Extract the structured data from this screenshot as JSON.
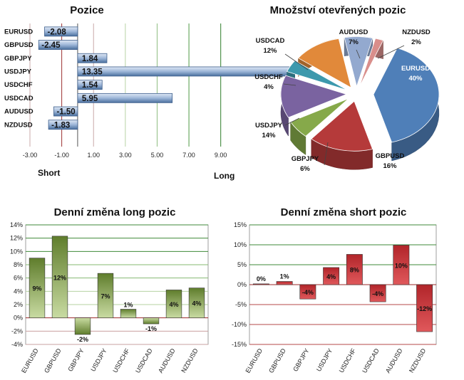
{
  "chart_data": [
    {
      "type": "bar",
      "orientation": "horizontal",
      "title": "Pozice",
      "categories": [
        "EURUSD",
        "GBPUSD",
        "GBPJPY",
        "USDJPY",
        "USDCHF",
        "USDCAD",
        "AUDUSD",
        "NZDUSD"
      ],
      "values": [
        -2.08,
        -2.45,
        1.84,
        13.35,
        1.54,
        5.95,
        -1.5,
        -1.83
      ],
      "value_labels": [
        "-2.08",
        "-2.45",
        "1.84",
        "13.35",
        "1.54",
        "5.95",
        "-1.50",
        "-1.83"
      ],
      "xticks": [
        "-3.00",
        "-1.00",
        "1.00",
        "3.00",
        "5.00",
        "7.00",
        "9.00"
      ],
      "xlim": [
        -3,
        10
      ],
      "left_label": "Short",
      "right_label": "Long"
    },
    {
      "type": "pie",
      "title": "Množství otevřených pozic",
      "slices": [
        {
          "name": "EURUSD",
          "value": 40,
          "label": "40%",
          "color": "#4f7fb8"
        },
        {
          "name": "GBPUSD",
          "value": 16,
          "label": "16%",
          "color": "#b53a3a"
        },
        {
          "name": "GBPJPY",
          "value": 6,
          "label": "6%",
          "color": "#86a94a"
        },
        {
          "name": "USDJPY",
          "value": 14,
          "label": "14%",
          "color": "#7a63a0"
        },
        {
          "name": "USDCHF",
          "value": 4,
          "label": "4%",
          "color": "#3d99ad"
        },
        {
          "name": "USDCAD",
          "value": 12,
          "label": "12%",
          "color": "#e1893a"
        },
        {
          "name": "AUDUSD",
          "value": 7,
          "label": "7%",
          "color": "#93a9cf"
        },
        {
          "name": "NZDUSD",
          "value": 2,
          "label": "2%",
          "color": "#d98e8b"
        }
      ]
    },
    {
      "type": "bar",
      "title": "Denní změna long pozic",
      "categories": [
        "EURUSD",
        "GBPUSD",
        "GBPJPY",
        "USDJPY",
        "USDCHF",
        "USDCAD",
        "AUDUSD",
        "NZDUSD"
      ],
      "values": [
        9,
        12.3,
        -2.5,
        6.7,
        1.3,
        -0.9,
        4.2,
        4.5
      ],
      "value_labels": [
        "9%",
        "12%",
        "-2%",
        "7%",
        "1%",
        "-1%",
        "4%",
        "4%"
      ],
      "yticks": [
        "-4%",
        "-2%",
        "0%",
        "2%",
        "4%",
        "6%",
        "8%",
        "10%",
        "12%",
        "14%"
      ],
      "ylim": [
        -4,
        14
      ],
      "color": "#6f8f35"
    },
    {
      "type": "bar",
      "title": "Denní změna short pozic",
      "categories": [
        "EURUSD",
        "GBPUSD",
        "GBPJPY",
        "USDJPY",
        "USDCHF",
        "USDCAD",
        "AUDUSD",
        "NZDUSD"
      ],
      "values": [
        0.2,
        0.8,
        -3.6,
        4.3,
        7.6,
        -4.3,
        9.9,
        -11.8
      ],
      "value_labels": [
        "0%",
        "1%",
        "-4%",
        "4%",
        "8%",
        "-4%",
        "10%",
        "-12%"
      ],
      "yticks": [
        "-15%",
        "-10%",
        "-5%",
        "0%",
        "5%",
        "10%",
        "15%"
      ],
      "ylim": [
        -15,
        15
      ],
      "color": "#c0282d"
    }
  ]
}
